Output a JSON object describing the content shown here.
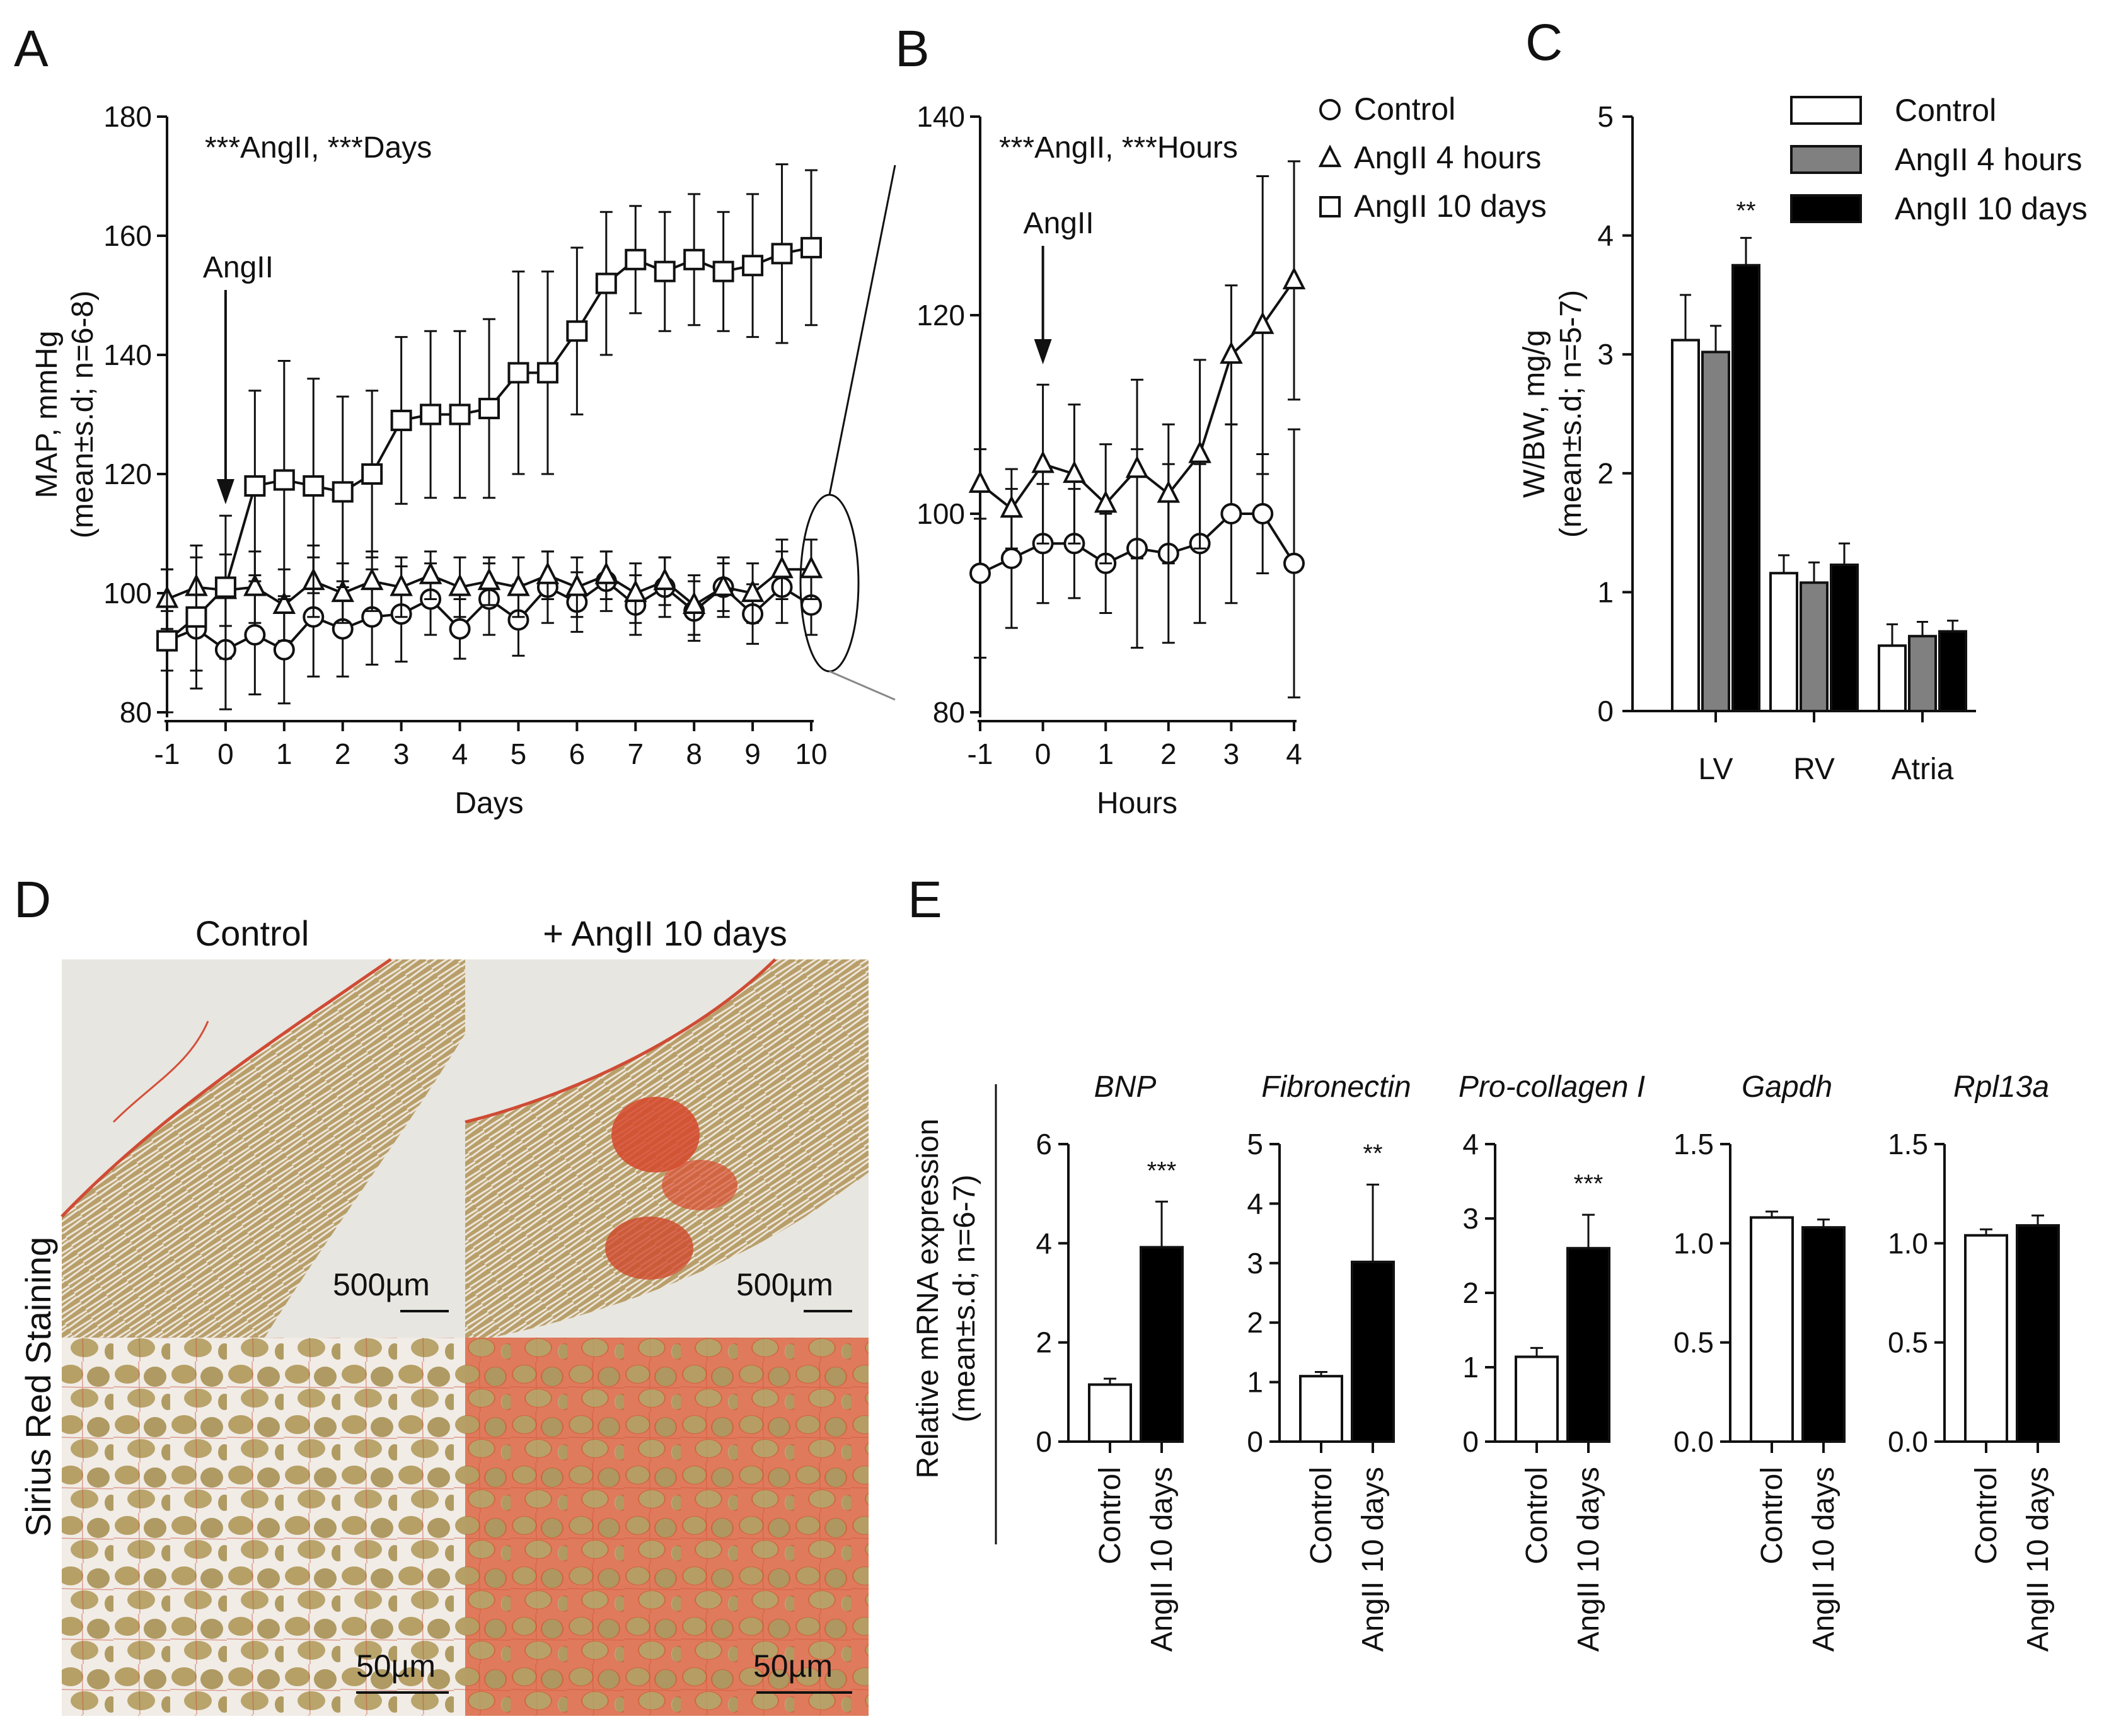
{
  "panels": {
    "A": "A",
    "B": "B",
    "C": "C",
    "D": "D",
    "E": "E"
  },
  "chart_data": [
    {
      "id": "A",
      "type": "line",
      "title": "***AngII, ***Days",
      "xlabel": "Days",
      "ylabel": "MAP, mmHg",
      "ylabel2": "(mean±s.d; n=6-8)",
      "xlim": [
        -1,
        10
      ],
      "ylim": [
        80,
        180
      ],
      "xticks": [
        -1,
        0,
        1,
        2,
        3,
        4,
        5,
        6,
        7,
        8,
        9,
        10
      ],
      "yticks": [
        80,
        100,
        120,
        140,
        160,
        180
      ],
      "annotation": "AngII",
      "annotation_x": 0,
      "x": [
        -1,
        -0.5,
        0,
        0.5,
        1,
        1.5,
        2,
        2.5,
        3,
        3.5,
        4,
        4.5,
        5,
        5.5,
        6,
        6.5,
        7,
        7.5,
        8,
        8.5,
        9,
        9.5,
        10
      ],
      "series": [
        {
          "name": "Control",
          "marker": "circle",
          "values": [
            92,
            94,
            90.5,
            93,
            90.5,
            96,
            94,
            96,
            96.5,
            99,
            94,
            99,
            95.5,
            101,
            98.5,
            102,
            98,
            101,
            97,
            101,
            96.5,
            101,
            98
          ],
          "errors": [
            5,
            7,
            10,
            10,
            9,
            10,
            8,
            8,
            8,
            6,
            5,
            6,
            6,
            6,
            5,
            5,
            5,
            5,
            5,
            5,
            5,
            6,
            5
          ]
        },
        {
          "name": "AngII 4 hours",
          "marker": "triangle",
          "values": [
            99,
            101,
            100.5,
            101,
            98,
            102,
            100,
            102,
            101,
            103,
            101,
            102,
            101,
            103,
            101,
            103,
            100,
            102,
            98,
            101,
            100,
            104,
            104
          ],
          "errors": [
            5,
            5,
            6,
            6,
            6,
            6,
            5,
            5,
            5,
            4,
            5,
            4,
            5,
            4,
            5,
            4,
            5,
            4,
            5,
            4,
            5,
            5,
            5
          ]
        },
        {
          "name": "AngII 10 days",
          "marker": "square",
          "values": [
            92,
            96,
            101,
            118,
            119,
            118,
            117,
            120,
            129,
            130,
            130,
            131,
            137,
            137,
            144,
            152,
            156,
            154,
            156,
            154,
            155,
            157,
            158
          ],
          "errors": [
            12,
            12,
            12,
            16,
            20,
            18,
            16,
            14,
            14,
            14,
            14,
            15,
            17,
            17,
            14,
            12,
            9,
            10,
            11,
            10,
            12,
            15,
            13
          ]
        }
      ]
    },
    {
      "id": "B",
      "type": "line",
      "title": "***AngII, ***Hours",
      "xlabel": "Hours",
      "xlim": [
        -1,
        4
      ],
      "ylim": [
        80,
        140
      ],
      "xticks": [
        -1,
        0,
        1,
        2,
        3,
        4
      ],
      "yticks": [
        80,
        100,
        120,
        140
      ],
      "annotation": "AngII",
      "annotation_x": 0,
      "x": [
        -1,
        -0.5,
        0,
        0.5,
        1,
        1.5,
        2,
        2.5,
        3,
        3.5,
        4
      ],
      "legend": [
        "Control",
        "AngII 4 hours",
        "AngII 10 days"
      ],
      "series": [
        {
          "name": "Control",
          "marker": "circle",
          "values": [
            94,
            95.5,
            97,
            97,
            95,
            96.5,
            96,
            97,
            100,
            100,
            95
          ],
          "errors": [
            8.5,
            7,
            6,
            5.5,
            5,
            10,
            9,
            8,
            9,
            6,
            13.5
          ]
        },
        {
          "name": "AngII 4 hours",
          "marker": "triangle",
          "values": [
            103,
            100.5,
            105,
            104,
            101,
            104.5,
            102,
            106,
            116,
            119,
            123.5
          ],
          "errors": [
            3.5,
            4,
            8,
            7,
            6,
            9,
            7,
            9.5,
            7,
            15,
            12
          ]
        }
      ]
    },
    {
      "id": "C",
      "type": "bar",
      "ylabel": "W/BW, mg/g",
      "ylabel2": "(mean±s.d; n=5-7)",
      "ylim": [
        0,
        5
      ],
      "yticks": [
        0,
        1,
        2,
        3,
        4,
        5
      ],
      "categories": [
        "LV",
        "RV",
        "Atria"
      ],
      "series": [
        {
          "name": "Control",
          "color": "#ffffff",
          "values": [
            3.12,
            1.16,
            0.55
          ],
          "errors": [
            0.38,
            0.15,
            0.18
          ]
        },
        {
          "name": "AngII 4 hours",
          "color": "#808080",
          "values": [
            3.02,
            1.08,
            0.63
          ],
          "errors": [
            0.22,
            0.17,
            0.12
          ]
        },
        {
          "name": "AngII 10 days",
          "color": "#000000",
          "values": [
            3.75,
            1.23,
            0.67
          ],
          "errors": [
            0.23,
            0.18,
            0.09
          ]
        }
      ],
      "significance": {
        "category": "LV",
        "label": "**"
      }
    },
    {
      "id": "E",
      "type": "bar",
      "ylabel": "Relative mRNA expression",
      "ylabel2": "(mean±s.d; n=6-7)",
      "categories": [
        "Control",
        "AngII 10 days"
      ],
      "subplots": [
        {
          "gene": "BNP",
          "ylim": [
            0,
            6
          ],
          "yticks": [
            "0",
            "2",
            "4",
            "6"
          ],
          "tickvals": [
            0,
            2,
            4,
            6
          ],
          "values": [
            1.15,
            3.92
          ],
          "errors": [
            0.12,
            0.92
          ],
          "sig": "***"
        },
        {
          "gene": "Fibronectin",
          "ylim": [
            0,
            5
          ],
          "yticks": [
            "0",
            "1",
            "2",
            "3",
            "4",
            "5"
          ],
          "tickvals": [
            0,
            1,
            2,
            3,
            4,
            5
          ],
          "values": [
            1.1,
            3.02
          ],
          "errors": [
            0.07,
            1.3
          ],
          "sig": "**"
        },
        {
          "gene": "Pro-collagen I",
          "ylim": [
            0,
            4
          ],
          "yticks": [
            "0",
            "1",
            "2",
            "3",
            "4"
          ],
          "tickvals": [
            0,
            1,
            2,
            3,
            4
          ],
          "values": [
            1.14,
            2.6
          ],
          "errors": [
            0.12,
            0.45
          ],
          "sig": "***"
        },
        {
          "gene": "Gapdh",
          "ylim": [
            0,
            1.5
          ],
          "yticks": [
            "0.0",
            "0.5",
            "1.0",
            "1.5"
          ],
          "tickvals": [
            0,
            0.5,
            1,
            1.5
          ],
          "values": [
            1.13,
            1.08
          ],
          "errors": [
            0.03,
            0.04
          ],
          "sig": ""
        },
        {
          "gene": "Rpl13a",
          "ylim": [
            0,
            1.5
          ],
          "yticks": [
            "0.0",
            "0.5",
            "1.0",
            "1.5"
          ],
          "tickvals": [
            0,
            0.5,
            1,
            1.5
          ],
          "values": [
            1.04,
            1.09
          ],
          "errors": [
            0.03,
            0.05
          ],
          "sig": ""
        }
      ]
    }
  ],
  "histology": {
    "row_label": "Sirius Red Staining",
    "col_labels": [
      "Control",
      "+ AngII 10 days"
    ],
    "scale_top": "500µm",
    "scale_bottom": "50µm"
  },
  "colors": {
    "tissue": "#b8a06a",
    "stain": "#d8452a",
    "background": "#e9e6df"
  }
}
